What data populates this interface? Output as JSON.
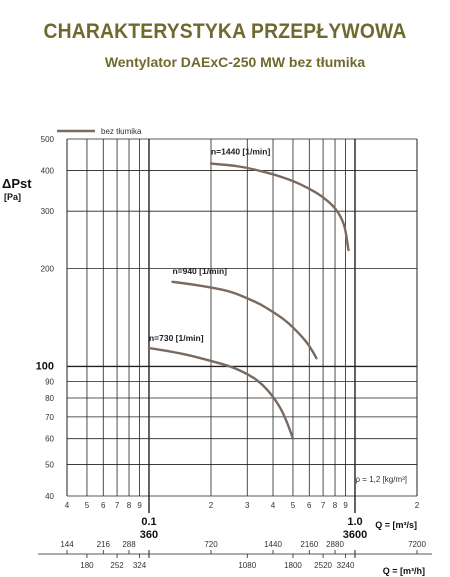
{
  "header": {
    "title": "CHARAKTERYSTYKA PRZEPŁYWOWA",
    "subtitle": "Wentylator DAExC-250 MW bez tłumika"
  },
  "colors": {
    "title": "#6e6a2e",
    "curve": "#7a6a60",
    "grid": "#222222"
  },
  "chart_data": {
    "type": "line",
    "title": "CHARAKTERYSTYKA PRZEPŁYWOWA",
    "subtitle": "Wentylator DAExC-250 MW bez tłumika",
    "legend": {
      "entries": [
        "bez tłumika"
      ],
      "placement": "top-left"
    },
    "x_scale": "log",
    "y_scale": "log",
    "xlim": [
      0.04,
      2.0
    ],
    "ylim": [
      40,
      500
    ],
    "xlabel": "Q = [m³/s]",
    "xlabel_m3h": "Q = [m³/h]",
    "ylabel": "ΔPst",
    "ylabel_unit": "[Pa]",
    "annotation": "ρ = 1,2 [kg/m³]",
    "x_ticks": [
      {
        "value": 0.04,
        "label": "4"
      },
      {
        "value": 0.05,
        "label": "5"
      },
      {
        "value": 0.06,
        "label": "6"
      },
      {
        "value": 0.07,
        "label": "7"
      },
      {
        "value": 0.08,
        "label": "8"
      },
      {
        "value": 0.09,
        "label": "9"
      },
      {
        "value": 0.2,
        "label": "2"
      },
      {
        "value": 0.3,
        "label": "3"
      },
      {
        "value": 0.4,
        "label": "4"
      },
      {
        "value": 0.5,
        "label": "5"
      },
      {
        "value": 0.6,
        "label": "6"
      },
      {
        "value": 0.7,
        "label": "7"
      },
      {
        "value": 0.8,
        "label": "8"
      },
      {
        "value": 0.9,
        "label": "9"
      },
      {
        "value": 2.0,
        "label": "2"
      }
    ],
    "x_major_ticks": [
      {
        "value": 0.1,
        "label": "0.1",
        "label2": "360"
      },
      {
        "value": 1.0,
        "label": "1.0",
        "label2": "3600"
      }
    ],
    "m3h_ticks_upper": [
      144,
      216,
      288,
      720,
      1440,
      2160,
      2880,
      7200
    ],
    "m3h_ticks_lower": [
      180,
      252,
      324,
      1080,
      1800,
      2520,
      3240
    ],
    "y_ticks": [
      {
        "value": 40,
        "label": "40"
      },
      {
        "value": 50,
        "label": "50"
      },
      {
        "value": 60,
        "label": "60"
      },
      {
        "value": 70,
        "label": "70"
      },
      {
        "value": 80,
        "label": "80"
      },
      {
        "value": 90,
        "label": "90"
      },
      {
        "value": 100,
        "label": "100",
        "major": true
      },
      {
        "value": 200,
        "label": "200"
      },
      {
        "value": 300,
        "label": "300"
      },
      {
        "value": 400,
        "label": "400"
      },
      {
        "value": 500,
        "label": "500"
      }
    ],
    "series": [
      {
        "label": "n=1440 [1/min]",
        "x": [
          0.2,
          0.25,
          0.3,
          0.35,
          0.4,
          0.5,
          0.6,
          0.7,
          0.8,
          0.87,
          0.9,
          0.93
        ],
        "y": [
          420,
          415,
          408,
          398,
          390,
          372,
          352,
          332,
          308,
          282,
          262,
          228
        ]
      },
      {
        "label": "n=940 [1/min]",
        "x": [
          0.13,
          0.16,
          0.2,
          0.25,
          0.3,
          0.35,
          0.4,
          0.45,
          0.5,
          0.55,
          0.6,
          0.65
        ],
        "y": [
          182,
          179,
          175,
          170,
          162,
          155,
          147,
          140,
          132,
          124,
          116,
          106
        ]
      },
      {
        "label": "n=730 [1/min]",
        "x": [
          0.1,
          0.13,
          0.16,
          0.2,
          0.25,
          0.3,
          0.35,
          0.4,
          0.45,
          0.5
        ],
        "y": [
          114,
          111,
          108,
          104,
          100,
          95,
          89,
          81,
          72,
          60
        ]
      }
    ]
  }
}
